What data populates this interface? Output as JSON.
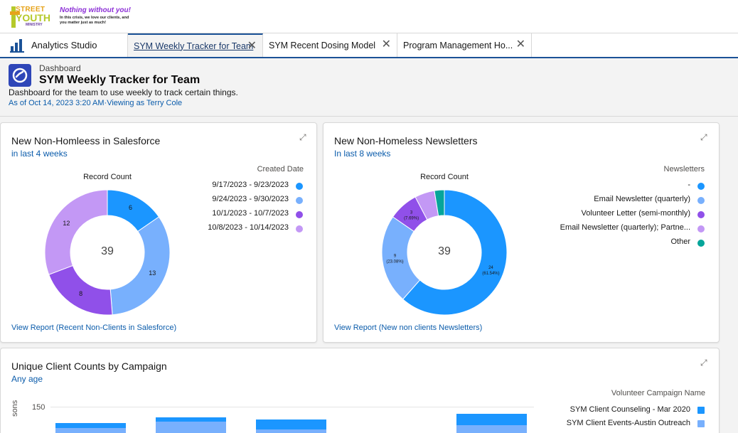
{
  "brand": {
    "logo_line1": "STREET",
    "logo_line2": "YOUTH",
    "logo_line3": "MINISTRY",
    "tagline": "Nothing without you!",
    "tagline_sub": "In this crisis, we love our clients, and you matter just as much!"
  },
  "tabs": {
    "app_label": "Analytics Studio",
    "items": [
      {
        "label": "SYM Weekly Tracker for Team",
        "active": true
      },
      {
        "label": "SYM Recent Dosing Model",
        "active": false
      },
      {
        "label": "Program Management Ho...",
        "active": false
      }
    ],
    "close_glyph": "✕"
  },
  "header": {
    "type": "Dashboard",
    "title": "SYM Weekly Tracker for Team",
    "description": "Dashboard for the team to use weekly to track certain things.",
    "meta": "As of Oct 14, 2023 3:20 AM·Viewing as Terry Cole"
  },
  "cards": {
    "c1": {
      "title": "New Non-Homleess in Salesforce",
      "subtitle": "in last 4 weeks",
      "legend_title": "Created Date",
      "link": "View Report (Recent Non-Clients in Salesforce)",
      "measure": "Record Count",
      "total": "39"
    },
    "c2": {
      "title": "New Non-Homeless Newsletters",
      "subtitle": "In last 8 weeks",
      "legend_title": "Newsletters",
      "link": "View Report (New non clients Newsletters)",
      "measure": "Record Count",
      "total": "39"
    },
    "c3": {
      "title": "Unique Client Counts by Campaign",
      "subtitle": "Any age",
      "legend_title": "Volunteer Campaign Name",
      "y_axis_label": "sons",
      "y_tick_top": "150"
    }
  },
  "chart_data": [
    {
      "type": "pie",
      "categories": [
        "9/17/2023 - 9/23/2023",
        "9/24/2023 - 9/30/2023",
        "10/1/2023 - 10/7/2023",
        "10/8/2023 - 10/14/2023"
      ],
      "values": [
        6,
        13,
        8,
        12
      ],
      "colors": [
        "#1b96ff",
        "#78b0fd",
        "#9050e9",
        "#c398f5"
      ],
      "slice_labels": [
        "6",
        "13",
        "8",
        "12"
      ],
      "title": "Record Count",
      "legend_placement": "right"
    },
    {
      "type": "pie",
      "categories": [
        "-",
        "Email Newsletter (quarterly)",
        "Volunteer Letter (semi-monthly)",
        "Email Newsletter (quarterly); Partne...",
        "Other"
      ],
      "values": [
        24,
        9,
        3,
        2,
        1
      ],
      "colors": [
        "#1b96ff",
        "#78b0fd",
        "#9050e9",
        "#c398f5",
        "#06a59a"
      ],
      "slice_labels": [
        "24\n(61.54%)",
        "9\n(23.08%)",
        "3\n(7.69%)",
        "",
        ""
      ],
      "title": "Record Count",
      "legend_placement": "right"
    },
    {
      "type": "bar",
      "series": [
        {
          "name": "SYM Client Counseling - Mar 2020",
          "color": "#1b96ff"
        },
        {
          "name": "SYM Client Events-Austin Outreach",
          "color": "#78b0fd"
        }
      ],
      "ylim_top": 150,
      "legend_placement": "right"
    }
  ]
}
